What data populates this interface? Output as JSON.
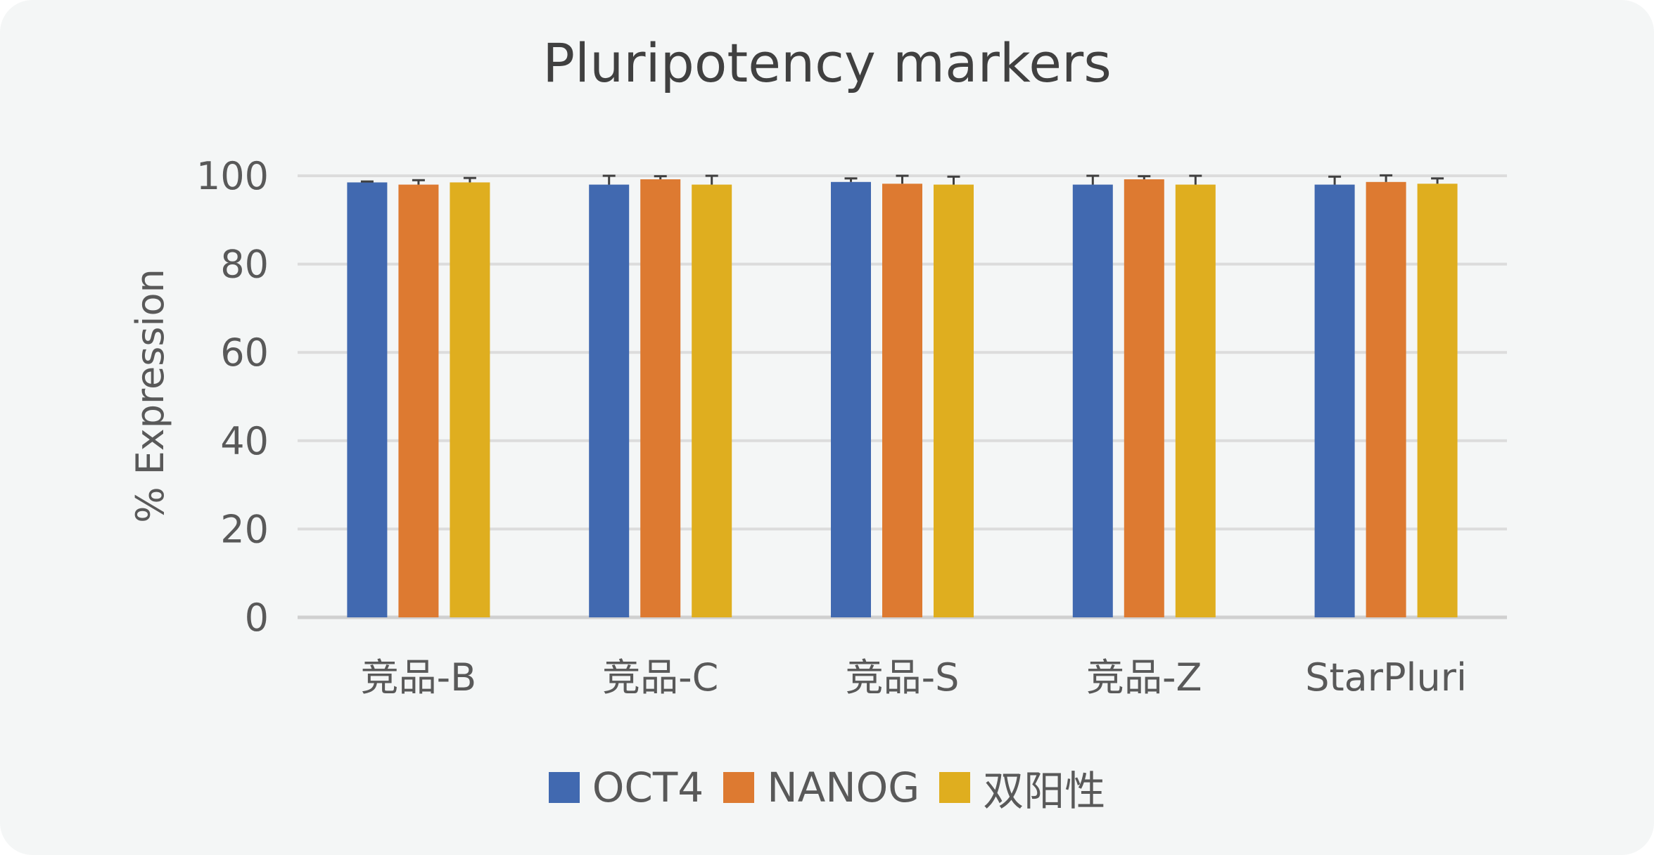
{
  "chart_data": {
    "type": "bar",
    "title": "Pluripotency markers",
    "ylabel": "% Expression",
    "xlabel": "",
    "ylim": [
      0,
      100
    ],
    "yticks": [
      0,
      20,
      40,
      60,
      80,
      100
    ],
    "grid": true,
    "legend_position": "bottom",
    "categories": [
      "竞品-B",
      "竞品-C",
      "竞品-S",
      "竞品-Z",
      "StarPluri"
    ],
    "series": [
      {
        "name": "OCT4",
        "color": "#4169b0",
        "values": [
          98.5,
          98.0,
          98.6,
          98.0,
          98.0
        ],
        "errors": [
          0.2,
          2.0,
          0.8,
          2.0,
          1.8
        ]
      },
      {
        "name": "NANOG",
        "color": "#dd7a31",
        "values": [
          98.0,
          99.2,
          98.2,
          99.2,
          98.6
        ],
        "errors": [
          1.0,
          0.7,
          1.8,
          0.7,
          1.5
        ]
      },
      {
        "name": "双阳性",
        "color": "#dfae1f",
        "values": [
          98.5,
          98.0,
          98.0,
          98.0,
          98.2
        ],
        "errors": [
          1.0,
          2.0,
          1.8,
          2.0,
          1.2
        ]
      }
    ]
  }
}
